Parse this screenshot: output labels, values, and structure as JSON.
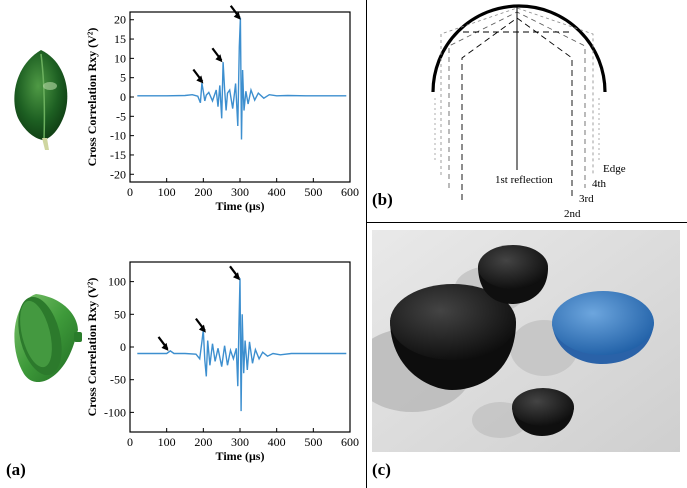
{
  "panel_labels": {
    "a": "(a)",
    "b": "(b)",
    "c": "(c)"
  },
  "colors": {
    "signal": "#3d8fcf",
    "leaf": "#1d5f22",
    "bowl_green": "#3e9a3a",
    "bowl_black": "#121212",
    "bowl_blue": "#2f6fb4",
    "photo_bg": "#d9d9d9"
  },
  "figure_b": {
    "labels": {
      "first": "1st reflection",
      "second": "2nd",
      "third": "3rd",
      "fourth": "4th",
      "edge": "Edge"
    }
  },
  "chart_data": [
    {
      "type": "line",
      "title": "",
      "xlabel": "Time (μs)",
      "ylabel": "Cross Correlation Rxy (V²)",
      "xlim": [
        0,
        600
      ],
      "ylim": [
        -22,
        22
      ],
      "xticks": [
        0,
        100,
        200,
        300,
        400,
        500,
        600
      ],
      "yticks": [
        20,
        15,
        10,
        5,
        0,
        -5,
        -10,
        -15,
        -20
      ],
      "annotations": [
        {
          "label": "arrow",
          "x": 200,
          "y": 3.5
        },
        {
          "label": "arrow",
          "x": 252,
          "y": 9
        },
        {
          "label": "arrow",
          "x": 302,
          "y": 20
        }
      ],
      "series": [
        {
          "x": [
            20,
            100,
            150,
            170,
            185,
            192,
            196,
            200,
            204,
            208,
            215,
            225,
            235,
            240,
            245,
            250,
            254,
            258,
            262,
            266,
            272,
            280,
            288,
            294,
            298,
            301,
            304,
            307,
            311,
            316,
            322,
            330,
            340,
            350,
            365,
            380,
            400,
            430,
            480,
            540,
            590
          ],
          "values": [
            0.3,
            0.3,
            0.4,
            0.6,
            0.2,
            -1.5,
            3.6,
            1.5,
            -1.0,
            0.5,
            1.2,
            -1.0,
            1.8,
            -2.5,
            3.0,
            -5.5,
            9.0,
            2.0,
            -3.5,
            1.0,
            1.8,
            -3.0,
            3.5,
            -7.5,
            13.0,
            20.5,
            -11.0,
            7.0,
            -3.5,
            1.5,
            -1.8,
            1.8,
            -0.8,
            1.0,
            -0.3,
            0.6,
            0.3,
            0.4,
            0.3,
            0.3,
            0.3
          ]
        }
      ]
    },
    {
      "type": "line",
      "title": "",
      "xlabel": "Time (μs)",
      "ylabel": "Cross Correlation Rxy (V²)",
      "xlim": [
        0,
        600
      ],
      "ylim": [
        -130,
        130
      ],
      "xticks": [
        0,
        100,
        200,
        300,
        400,
        500,
        600
      ],
      "yticks": [
        100,
        50,
        0,
        -50,
        -100
      ],
      "annotations": [
        {
          "label": "arrow",
          "x": 105,
          "y": -6
        },
        {
          "label": "arrow",
          "x": 207,
          "y": 22
        },
        {
          "label": "arrow",
          "x": 300,
          "y": 102
        }
      ],
      "series": [
        {
          "x": [
            20,
            80,
            100,
            110,
            120,
            150,
            180,
            190,
            196,
            200,
            204,
            208,
            212,
            218,
            225,
            232,
            240,
            250,
            258,
            266,
            274,
            282,
            290,
            294,
            297,
            300,
            303,
            306,
            310,
            314,
            320,
            326,
            334,
            342,
            352,
            362,
            375,
            390,
            410,
            440,
            500,
            590
          ],
          "values": [
            -10,
            -10,
            -10,
            -6,
            -10,
            -10,
            -11,
            -18,
            8,
            26,
            -20,
            -45,
            10,
            -28,
            5,
            -22,
            -2,
            -30,
            2,
            -28,
            -5,
            -18,
            -2,
            -60,
            30,
            105,
            -98,
            50,
            -40,
            10,
            -35,
            8,
            -25,
            -4,
            -18,
            -8,
            -14,
            -10,
            -12,
            -10,
            -10,
            -10
          ]
        }
      ]
    }
  ]
}
